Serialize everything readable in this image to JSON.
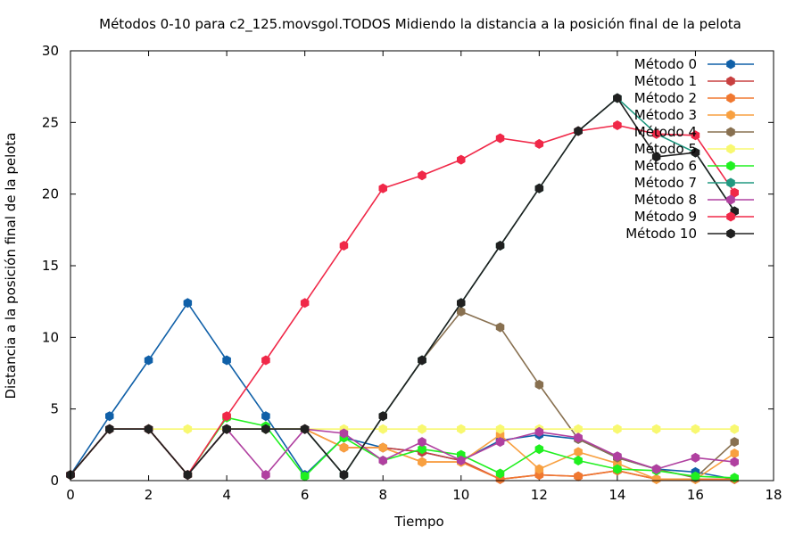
{
  "chart_data": {
    "type": "line",
    "title": "Métodos 0-10 para c2_125.movsgol.TODOS Midiendo la distancia a la posición final de la pelota",
    "xlabel": "Tiempo",
    "ylabel": "Distancia a la posición final de la pelota",
    "xlim": [
      0,
      18
    ],
    "ylim": [
      0,
      30
    ],
    "x_ticks": [
      0,
      2,
      4,
      6,
      8,
      10,
      12,
      14,
      16,
      18
    ],
    "y_ticks": [
      0,
      5,
      10,
      15,
      20,
      25,
      30
    ],
    "grid": false,
    "legend_position": "top-right",
    "x": [
      0,
      1,
      2,
      3,
      4,
      5,
      6,
      7,
      8,
      9,
      10,
      11,
      12,
      13,
      14,
      15,
      16,
      17
    ],
    "series": [
      {
        "name": "Método 0",
        "color": "#1060a8",
        "values": [
          0.4,
          4.5,
          8.4,
          12.4,
          8.4,
          4.5,
          0.4,
          3.0,
          2.3,
          2.0,
          1.4,
          2.8,
          3.2,
          2.9,
          1.6,
          0.8,
          0.6,
          0.1
        ]
      },
      {
        "name": "Método 1",
        "color": "#c84040",
        "values": [
          0.4,
          3.6,
          3.6,
          0.4,
          3.6,
          3.6,
          3.6,
          2.3,
          2.3,
          2.0,
          1.4,
          0.1,
          0.4,
          0.3,
          0.7,
          0.1,
          0.1,
          0.1
        ]
      },
      {
        "name": "Método 2",
        "color": "#f07830",
        "values": [
          0.4,
          3.6,
          3.6,
          0.4,
          3.6,
          3.6,
          3.6,
          2.3,
          2.3,
          1.3,
          1.3,
          0.1,
          0.4,
          0.3,
          0.7,
          0.1,
          0.1,
          0.1
        ]
      },
      {
        "name": "Método 3",
        "color": "#f8a040",
        "values": [
          0.4,
          3.6,
          3.6,
          0.4,
          3.6,
          3.6,
          3.6,
          2.3,
          2.3,
          1.3,
          1.3,
          3.2,
          0.8,
          2.0,
          1.2,
          0.1,
          0.1,
          1.9
        ]
      },
      {
        "name": "Método 4",
        "color": "#887050",
        "values": [
          0.4,
          3.6,
          3.6,
          0.4,
          3.6,
          3.6,
          3.6,
          0.4,
          4.5,
          8.4,
          11.8,
          10.7,
          6.7,
          2.9,
          1.6,
          0.8,
          0.2,
          2.7
        ]
      },
      {
        "name": "Método 5",
        "color": "#f8f870",
        "values": [
          0.4,
          3.6,
          3.6,
          3.6,
          3.6,
          3.6,
          3.6,
          3.6,
          3.6,
          3.6,
          3.6,
          3.6,
          3.6,
          3.6,
          3.6,
          3.6,
          3.6,
          3.6
        ]
      },
      {
        "name": "Método 6",
        "color": "#20f020",
        "values": [
          0.4,
          3.6,
          3.6,
          0.4,
          4.4,
          3.8,
          0.3,
          3.0,
          1.4,
          2.2,
          1.8,
          0.5,
          2.2,
          1.4,
          0.8,
          0.7,
          0.3,
          0.2
        ]
      },
      {
        "name": "Método 7",
        "color": "#209880",
        "values": [
          0.4,
          3.6,
          3.6,
          0.4,
          3.6,
          3.6,
          3.6,
          0.4,
          4.5,
          8.4,
          12.4,
          16.4,
          20.4,
          24.4,
          26.7,
          24.2,
          22.9,
          18.8
        ]
      },
      {
        "name": "Método 8",
        "color": "#b040a0",
        "values": [
          0.4,
          3.6,
          3.6,
          0.4,
          3.6,
          0.4,
          3.6,
          3.3,
          1.4,
          2.7,
          1.4,
          2.7,
          3.4,
          3.0,
          1.7,
          0.8,
          1.6,
          1.3
        ]
      },
      {
        "name": "Método 9",
        "color": "#f02848",
        "values": [
          0.4,
          3.6,
          3.6,
          0.4,
          4.5,
          8.4,
          12.4,
          16.4,
          20.4,
          21.3,
          22.4,
          23.9,
          23.5,
          24.4,
          24.8,
          24.2,
          24.1,
          20.1
        ]
      },
      {
        "name": "Método 10",
        "color": "#202020",
        "values": [
          0.4,
          3.6,
          3.6,
          0.4,
          3.6,
          3.6,
          3.6,
          0.4,
          4.5,
          8.4,
          12.4,
          16.4,
          20.4,
          24.4,
          26.7,
          22.6,
          22.9,
          18.8
        ]
      }
    ]
  }
}
